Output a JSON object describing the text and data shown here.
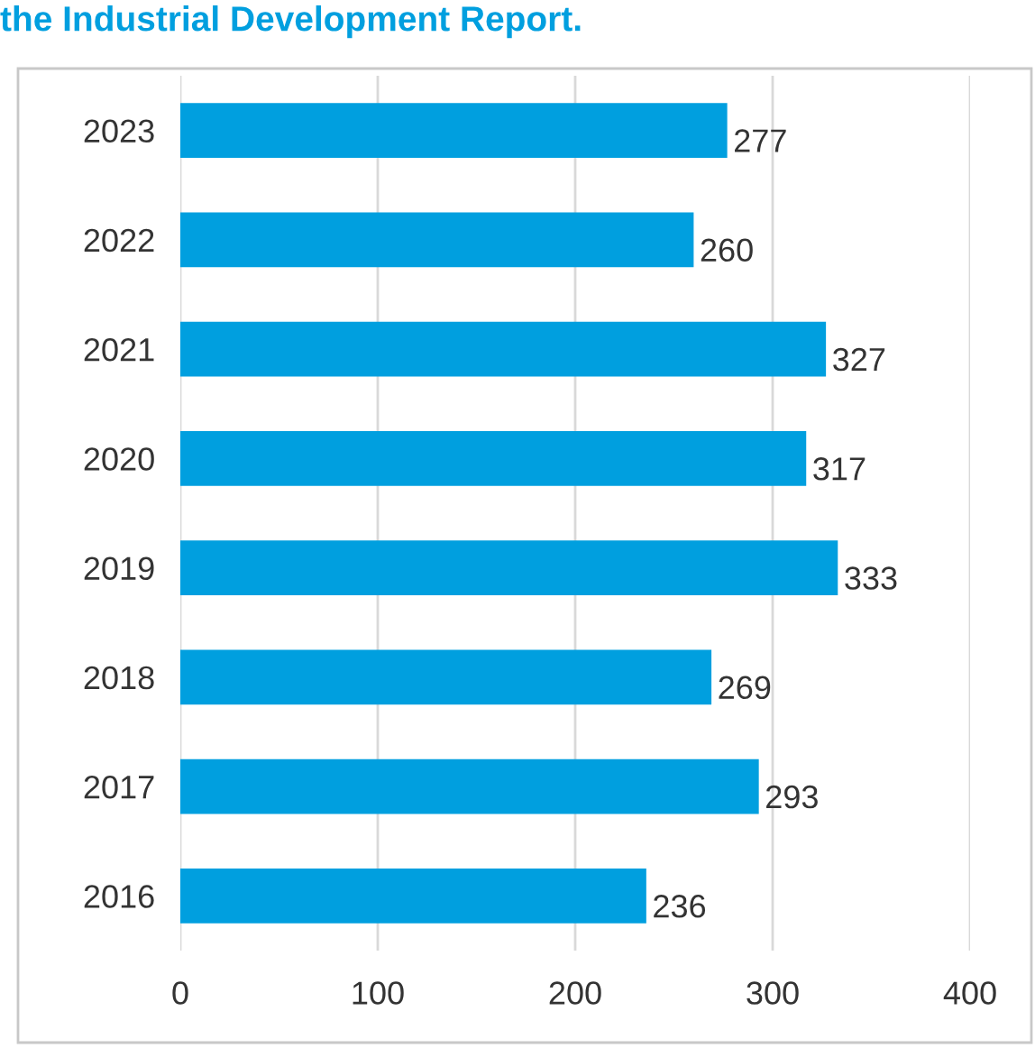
{
  "chart_data": {
    "type": "bar",
    "orientation": "horizontal",
    "title": "the Industrial Development Report.",
    "categories": [
      "2023",
      "2022",
      "2021",
      "2020",
      "2019",
      "2018",
      "2017",
      "2016"
    ],
    "values": [
      277,
      260,
      327,
      317,
      333,
      269,
      293,
      236
    ],
    "color": "#009fdf",
    "xlim": [
      0,
      400
    ],
    "xticks": [
      0,
      100,
      200,
      300,
      400
    ],
    "grid": "x",
    "data_labels": true
  }
}
